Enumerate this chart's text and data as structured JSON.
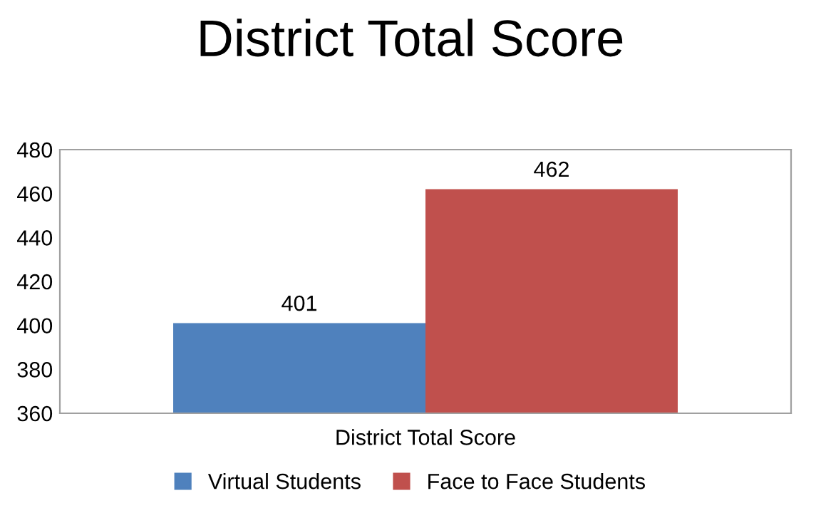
{
  "chart_data": {
    "type": "bar",
    "title": "District Total Score",
    "categories": [
      "District Total Score"
    ],
    "series": [
      {
        "name": "Virtual Students",
        "color": "#4f81bd",
        "values": [
          401
        ]
      },
      {
        "name": "Face to Face Students",
        "color": "#c0504d",
        "values": [
          462
        ]
      }
    ],
    "ylim": [
      360,
      480
    ],
    "yticks": [
      360,
      380,
      400,
      420,
      440,
      460,
      480
    ],
    "grid": false,
    "legend": "bottom",
    "data_labels": true
  }
}
